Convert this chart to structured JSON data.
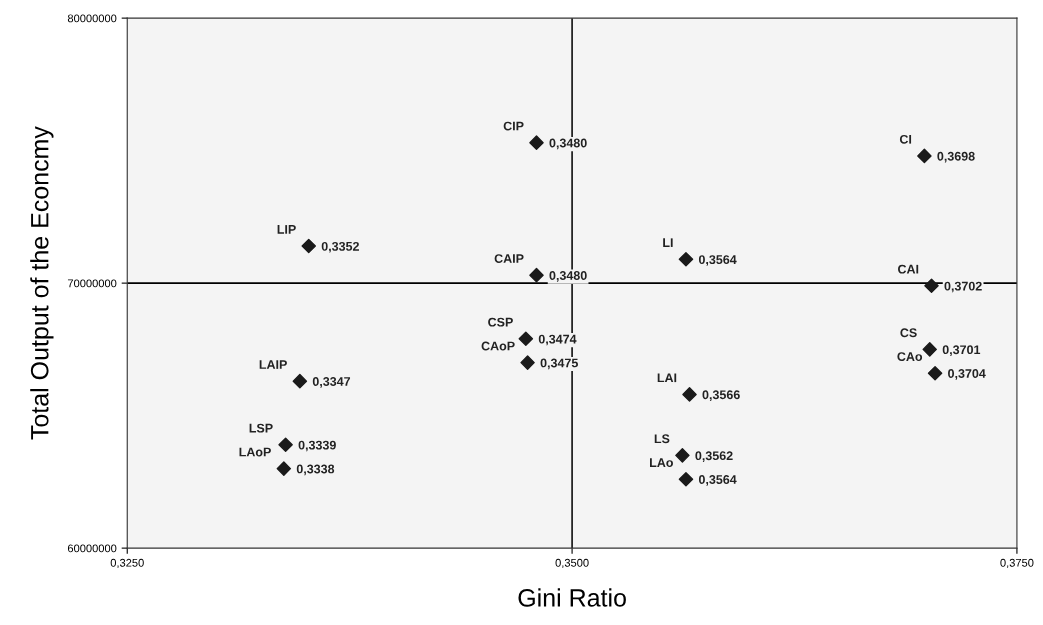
{
  "chart_data": {
    "type": "scatter",
    "xlabel": "Gini Ratio",
    "ylabel": "Total Output of the Econcmy",
    "x": [
      0.348,
      0.3352,
      0.348,
      0.3474,
      0.3475,
      0.3347,
      0.3339,
      0.3338,
      0.3564,
      0.3698,
      0.3702,
      0.3701,
      0.3704,
      0.3566,
      0.3562,
      0.3564
    ],
    "values": [
      75300000,
      71400000,
      70300000,
      67900000,
      67000000,
      66300000,
      63900000,
      63000000,
      70900000,
      74800000,
      69900000,
      67500000,
      66600000,
      65800000,
      63500000,
      62600000
    ],
    "color": "#1a1a1a",
    "marker": "diamond",
    "grid": false,
    "xlim": [
      0.325,
      0.375
    ],
    "xticks": [
      {
        "value": 0.325,
        "label": "0,3250"
      },
      {
        "value": 0.35,
        "label": "0,3500"
      },
      {
        "value": 0.375,
        "label": "0,3750"
      }
    ],
    "ylim": [
      60000000,
      80000000
    ],
    "yticks": [
      60000000,
      70000000,
      80000000
    ],
    "ref_lines": [
      {
        "axis": "x",
        "value": 0.35,
        "color": "#000000"
      },
      {
        "axis": "y",
        "value": 70000000,
        "color": "#000000"
      }
    ],
    "annotations": [
      {
        "text": "CIP",
        "x": 0.348,
        "y": 75300000
      },
      {
        "text": "0,3480",
        "x": 0.348,
        "y": 75300000
      },
      {
        "text": "LIP",
        "x": 0.3352,
        "y": 71400000
      },
      {
        "text": "0,3352",
        "x": 0.3352,
        "y": 71400000
      },
      {
        "text": "CAIP",
        "x": 0.348,
        "y": 70300000
      },
      {
        "text": "0,3480",
        "x": 0.348,
        "y": 70300000
      },
      {
        "text": "CSP",
        "x": 0.3474,
        "y": 67900000
      },
      {
        "text": "0,3474",
        "x": 0.3474,
        "y": 67900000
      },
      {
        "text": "CAoP",
        "x": 0.3475,
        "y": 67000000
      },
      {
        "text": "0,3475",
        "x": 0.3475,
        "y": 67000000
      },
      {
        "text": "LAIP",
        "x": 0.3347,
        "y": 66300000
      },
      {
        "text": "0,3347",
        "x": 0.3347,
        "y": 66300000
      },
      {
        "text": "LSP",
        "x": 0.3339,
        "y": 63900000
      },
      {
        "text": "0,3339",
        "x": 0.3339,
        "y": 63900000
      },
      {
        "text": "LAoP",
        "x": 0.3338,
        "y": 63000000
      },
      {
        "text": "0,3338",
        "x": 0.3338,
        "y": 63000000
      },
      {
        "text": "LI",
        "x": 0.3564,
        "y": 70900000
      },
      {
        "text": "0,3564",
        "x": 0.3564,
        "y": 70900000
      },
      {
        "text": "CI",
        "x": 0.3698,
        "y": 74800000
      },
      {
        "text": "0,3698",
        "x": 0.3698,
        "y": 74800000
      },
      {
        "text": "CAI",
        "x": 0.3702,
        "y": 69900000
      },
      {
        "text": "0,3702",
        "x": 0.3702,
        "y": 69900000
      },
      {
        "text": "CS",
        "x": 0.3701,
        "y": 67500000
      },
      {
        "text": "0,3701",
        "x": 0.3701,
        "y": 67500000
      },
      {
        "text": "CAo",
        "x": 0.3704,
        "y": 66600000
      },
      {
        "text": "0,3704",
        "x": 0.3704,
        "y": 66600000
      },
      {
        "text": "LAI",
        "x": 0.3566,
        "y": 65800000
      },
      {
        "text": "0,3566",
        "x": 0.3566,
        "y": 65800000
      },
      {
        "text": "LS",
        "x": 0.3562,
        "y": 63500000
      },
      {
        "text": "0,3562",
        "x": 0.3562,
        "y": 63500000
      },
      {
        "text": "LAo",
        "x": 0.3564,
        "y": 62600000
      },
      {
        "text": "0,3564",
        "x": 0.3564,
        "y": 62600000
      }
    ]
  }
}
